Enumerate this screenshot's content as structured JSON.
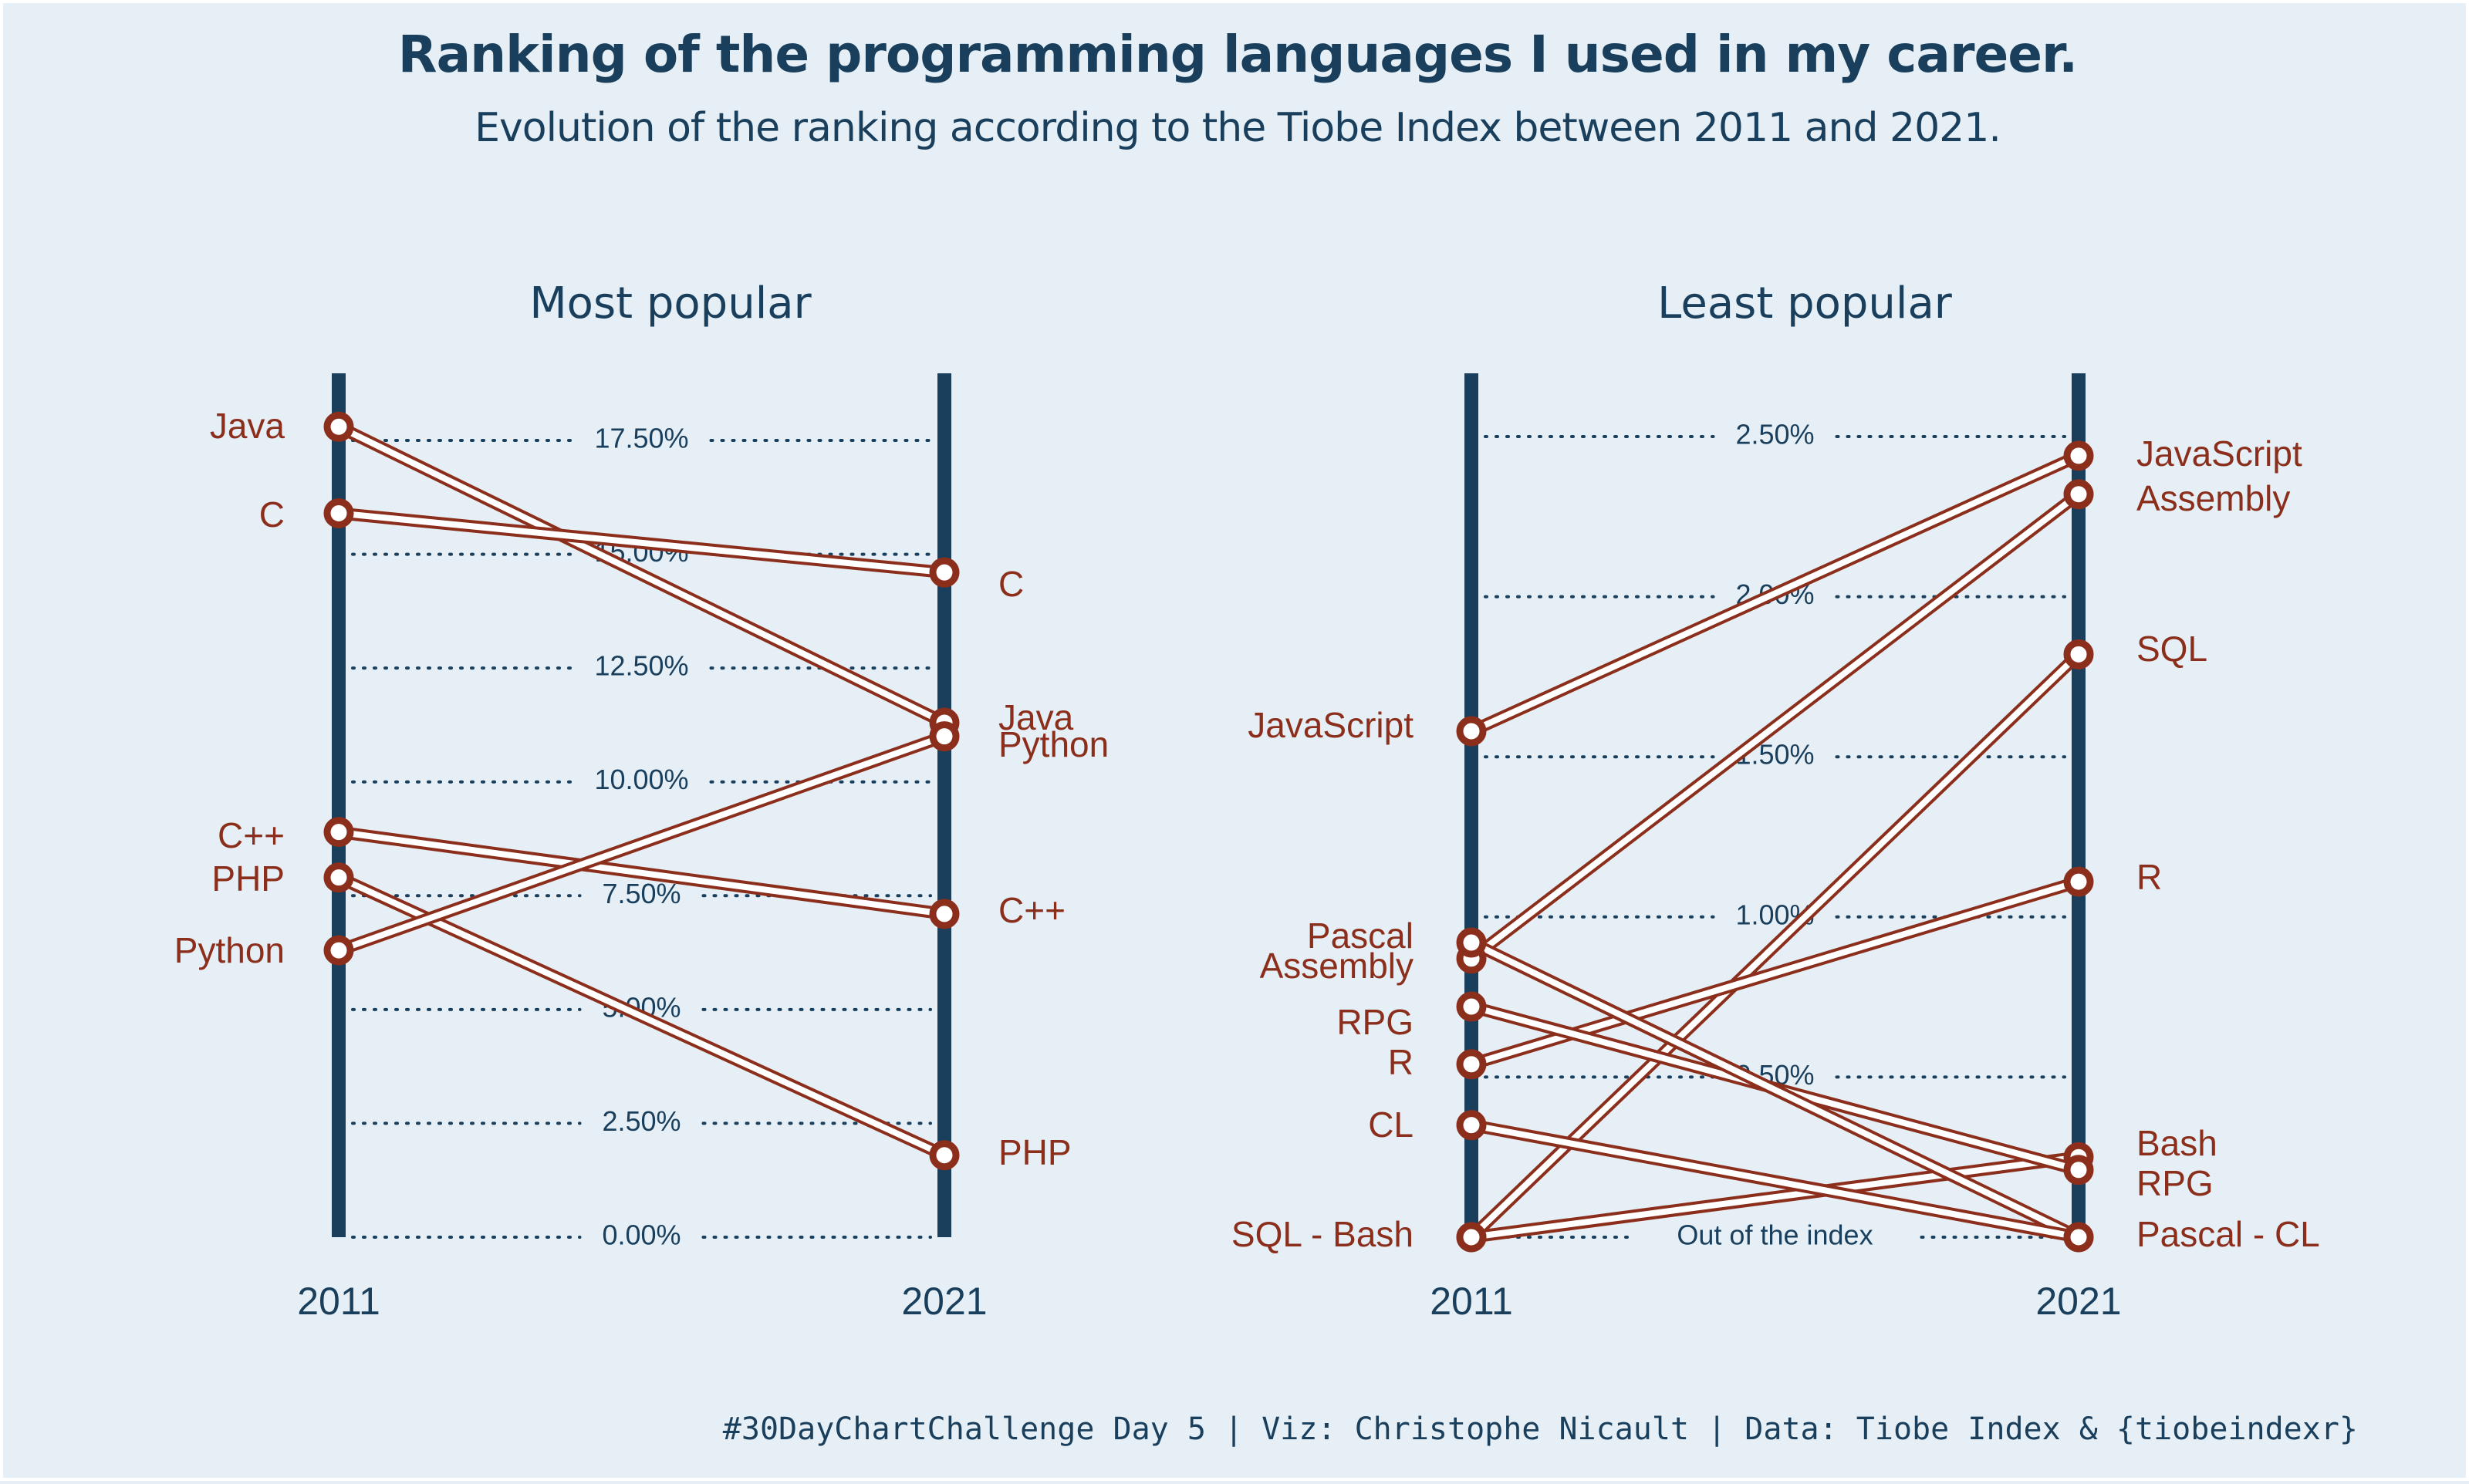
{
  "title": "Ranking of the programming languages I used in my career.",
  "subtitle": "Evolution of the ranking according to the Tiobe Index between 2011 and 2021.",
  "caption": "#30DayChartChallenge Day 5 | Viz: Christophe Nicault | Data: Tiobe Index & {tiobeindexr}",
  "colors": {
    "background": "#e6eff6",
    "axis": "#1a3f5c",
    "series": "#8b2f1c",
    "text": "#1a3f5c"
  },
  "chart_data": [
    {
      "type": "line",
      "title": "Most popular",
      "x": [
        "2011",
        "2021"
      ],
      "ylim": [
        0,
        18.5
      ],
      "y_ticks": [
        "0.00%",
        "2.50%",
        "5.00%",
        "7.50%",
        "10.00%",
        "12.50%",
        "15.00%",
        "17.50%"
      ],
      "series": [
        {
          "name": "Java",
          "values": [
            17.8,
            11.3
          ]
        },
        {
          "name": "C",
          "values": [
            15.9,
            14.6
          ]
        },
        {
          "name": "C++",
          "values": [
            8.9,
            7.1
          ]
        },
        {
          "name": "PHP",
          "values": [
            7.9,
            1.8
          ]
        },
        {
          "name": "Python",
          "values": [
            6.3,
            11.0
          ]
        }
      ],
      "labels_2011": [
        "Java",
        "C",
        "C++",
        "PHP",
        "Python"
      ],
      "labels_2021": [
        "C",
        "Java",
        "Python",
        "C++",
        "PHP"
      ]
    },
    {
      "type": "line",
      "title": "Least popular",
      "x": [
        "2011",
        "2021"
      ],
      "ylim": [
        0,
        2.55
      ],
      "y_ticks": [
        "Out of the index",
        "0.50%",
        "1.00%",
        "1.50%",
        "2.00%",
        "2.50%"
      ],
      "series": [
        {
          "name": "JavaScript",
          "values": [
            1.58,
            2.44
          ]
        },
        {
          "name": "Assembly",
          "values": [
            0.87,
            2.32
          ]
        },
        {
          "name": "SQL",
          "values": [
            0.0,
            1.82
          ]
        },
        {
          "name": "R",
          "values": [
            0.54,
            1.11
          ]
        },
        {
          "name": "Bash",
          "values": [
            0.0,
            0.25
          ]
        },
        {
          "name": "RPG",
          "values": [
            0.72,
            0.21
          ]
        },
        {
          "name": "Pascal",
          "values": [
            0.92,
            0.0
          ]
        },
        {
          "name": "CL",
          "values": [
            0.35,
            0.0
          ]
        }
      ],
      "labels_2011": [
        "JavaScript",
        "Pascal",
        "Assembly",
        "RPG",
        "R",
        "CL",
        "SQL - Bash"
      ],
      "labels_2021": [
        "JavaScript",
        "Assembly",
        "SQL",
        "R",
        "Bash",
        "RPG",
        "Pascal - CL"
      ]
    }
  ]
}
